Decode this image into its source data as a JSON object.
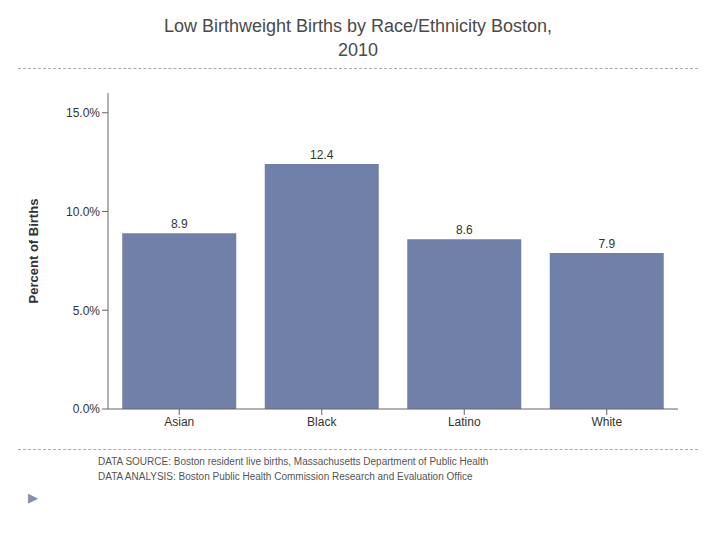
{
  "chart_data": {
    "type": "bar",
    "title": "Low Birthweight Births by Race/Ethnicity Boston,\n2010",
    "categories": [
      "Asian",
      "Black",
      "Latino",
      "White"
    ],
    "values": [
      8.9,
      12.4,
      8.6,
      7.9
    ],
    "color": "#7080a8",
    "ylabel": "Percent of Births",
    "ylim": [
      0,
      16.0
    ],
    "yticks": [
      {
        "value": 0.0,
        "label": "0.0%"
      },
      {
        "value": 5.0,
        "label": "5.0%"
      },
      {
        "value": 10.0,
        "label": "10.0%"
      },
      {
        "value": 15.0,
        "label": "15.0%"
      }
    ],
    "grid": false,
    "data_labels": true,
    "annotations": [
      "DATA SOURCE: Boston resident live births, Massachusetts Department of Public Health",
      "DATA ANALYSIS: Boston Public Health Commission Research and Evaluation Office",
      "▶"
    ]
  }
}
